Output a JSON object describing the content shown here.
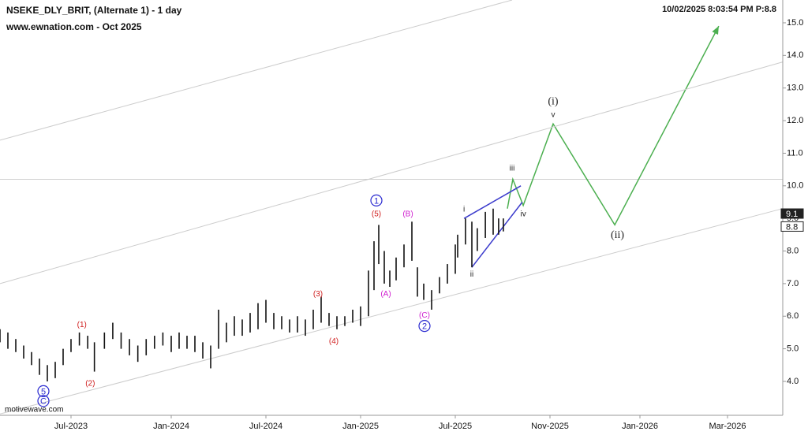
{
  "chart_data": {
    "type": "ohlc",
    "title": "NSEKE_DLY_BRIT, (Alternate 1) - 1 day",
    "subtitle": "www.ewnation.com  - Oct 2025",
    "timestamp": "10/02/2025 8:03:54 PM  P:8.8",
    "watermark": "motivewave.com",
    "xlim": [
      1.5,
      39.26
    ],
    "xticks": [
      {
        "value": 6,
        "label": "Jul-2023"
      },
      {
        "value": 12,
        "label": "Jan-2024"
      },
      {
        "value": 18,
        "label": "Jul-2024"
      },
      {
        "value": 24,
        "label": "Jan-2025"
      },
      {
        "value": 30,
        "label": "Jul-2025"
      },
      {
        "value": 34,
        "label": "Nov-2025"
      },
      {
        "value": 36,
        "label": "Jan-2026"
      },
      {
        "value": 38,
        "label": "Mar-2026"
      }
    ],
    "ylim": [
      2.96,
      15.7
    ],
    "yticks": [
      {
        "value": 4,
        "label": "4.0"
      },
      {
        "value": 5,
        "label": "5.0"
      },
      {
        "value": 6,
        "label": "6.0"
      },
      {
        "value": 7,
        "label": "7.0"
      },
      {
        "value": 8,
        "label": "8.0"
      },
      {
        "value": 9,
        "label": "9.0"
      },
      {
        "value": 10,
        "label": "10.0"
      },
      {
        "value": 11,
        "label": "11.0"
      },
      {
        "value": 12,
        "label": "12.0"
      },
      {
        "value": 13,
        "label": "13.0"
      },
      {
        "value": 14,
        "label": "14.0"
      },
      {
        "value": 15,
        "label": "15.0"
      }
    ],
    "price_labels": [
      9.1,
      8.8
    ],
    "hline": 10.2,
    "bars": {
      "color": "#111111",
      "x": [
        1.5,
        2.0,
        2.5,
        3.0,
        3.5,
        4.0,
        4.5,
        5.0,
        5.5,
        6.0,
        6.5,
        7.0,
        7.4,
        8.0,
        8.5,
        9.0,
        9.5,
        10.0,
        10.5,
        11.0,
        11.5,
        12.0,
        12.5,
        13.0,
        13.5,
        14.0,
        14.5,
        15.0,
        15.5,
        16.0,
        16.5,
        17.0,
        17.5,
        18.0,
        18.5,
        19.0,
        19.5,
        20.0,
        20.5,
        21.0,
        21.5,
        22.0,
        22.5,
        23.0,
        23.5,
        24.0,
        24.5,
        24.85,
        25.15,
        25.5,
        25.85,
        26.25,
        26.75,
        27.25,
        27.6,
        28.0,
        28.5,
        29.0,
        29.5,
        30.0,
        30.1,
        30.43,
        30.7,
        30.93,
        31.27,
        31.6,
        31.83,
        32.03
      ],
      "high": [
        5.6,
        5.5,
        5.3,
        5.1,
        4.9,
        4.7,
        4.5,
        4.6,
        5.0,
        5.3,
        5.5,
        5.4,
        5.2,
        5.5,
        5.8,
        5.5,
        5.3,
        5.1,
        5.3,
        5.4,
        5.5,
        5.4,
        5.5,
        5.4,
        5.4,
        5.2,
        5.1,
        6.2,
        5.8,
        6.0,
        5.9,
        6.1,
        6.4,
        6.5,
        6.1,
        6.0,
        5.9,
        6.0,
        5.9,
        6.2,
        6.6,
        6.1,
        6.0,
        6.0,
        6.2,
        6.3,
        7.4,
        8.3,
        8.8,
        8.0,
        7.4,
        7.8,
        8.2,
        8.9,
        7.5,
        7.0,
        6.8,
        7.2,
        7.6,
        8.2,
        8.5,
        9.0,
        8.9,
        8.7,
        9.2,
        9.3,
        9.0,
        9.0
      ],
      "low": [
        5.2,
        5.0,
        4.9,
        4.7,
        4.5,
        4.2,
        4.0,
        4.1,
        4.5,
        4.9,
        5.1,
        5.0,
        4.3,
        5.0,
        5.3,
        5.0,
        4.8,
        4.6,
        4.8,
        5.0,
        5.1,
        4.9,
        5.0,
        5.0,
        4.9,
        4.7,
        4.4,
        5.0,
        5.2,
        5.4,
        5.4,
        5.5,
        5.6,
        5.8,
        5.6,
        5.6,
        5.5,
        5.5,
        5.4,
        5.6,
        5.8,
        5.7,
        5.6,
        5.7,
        5.8,
        5.7,
        6.0,
        6.8,
        7.6,
        7.0,
        6.9,
        7.1,
        7.5,
        7.7,
        6.6,
        6.5,
        6.2,
        6.7,
        7.0,
        7.3,
        7.8,
        8.2,
        7.5,
        8.0,
        8.4,
        8.5,
        8.5,
        8.6
      ]
    },
    "series": [
      {
        "name": "projection",
        "color": "#4caf50",
        "x": [
          32.2,
          32.43,
          32.87,
          34.07,
          35.44,
          37.8
        ],
        "values": [
          9.3,
          10.2,
          9.4,
          11.9,
          8.8,
          14.9
        ]
      },
      {
        "name": "wedge-top",
        "color": "#3a3acc",
        "x": [
          30.37,
          32.77
        ],
        "values": [
          9.0,
          10.0
        ]
      },
      {
        "name": "wedge-bottom",
        "color": "#3a3acc",
        "x": [
          30.7,
          32.83
        ],
        "values": [
          7.5,
          9.5
        ]
      },
      {
        "name": "channel-1",
        "color": "#cccccc",
        "x": [
          1.5,
          32.4
        ],
        "values": [
          11.4,
          15.7
        ]
      },
      {
        "name": "channel-2",
        "color": "#cccccc",
        "x": [
          1.5,
          39.26
        ],
        "values": [
          7.0,
          13.8
        ]
      },
      {
        "name": "channel-3",
        "color": "#cccccc",
        "x": [
          1.5,
          39.26
        ],
        "values": [
          3.0,
          9.3
        ]
      }
    ],
    "annotations": [
      {
        "text": "5",
        "x": 4.25,
        "y": 3.7,
        "color": "#2a2ad0",
        "circled": true
      },
      {
        "text": "C",
        "x": 4.25,
        "y": 3.4,
        "color": "#2a2ad0",
        "circled": true
      },
      {
        "text": "(1)",
        "x": 6.65,
        "y": 5.75,
        "color": "#d02020"
      },
      {
        "text": "(2)",
        "x": 7.15,
        "y": 3.95,
        "color": "#d02020"
      },
      {
        "text": "(3)",
        "x": 21.3,
        "y": 6.7,
        "color": "#d02020"
      },
      {
        "text": "(4)",
        "x": 22.3,
        "y": 5.25,
        "color": "#d02020"
      },
      {
        "text": "(5)",
        "x": 25.0,
        "y": 9.15,
        "color": "#d02020"
      },
      {
        "text": "1",
        "x": 25.0,
        "y": 9.55,
        "color": "#2a2ad0",
        "circled": true
      },
      {
        "text": "(B)",
        "x": 27.0,
        "y": 9.15,
        "color": "#d020d0"
      },
      {
        "text": "(A)",
        "x": 25.6,
        "y": 6.7,
        "color": "#d020d0"
      },
      {
        "text": "(C)",
        "x": 28.05,
        "y": 6.05,
        "color": "#d020d0"
      },
      {
        "text": "2",
        "x": 28.05,
        "y": 5.7,
        "color": "#2a2ad0",
        "circled": true
      },
      {
        "text": "i",
        "x": 30.37,
        "y": 9.3,
        "color": "#222222"
      },
      {
        "text": "ii",
        "x": 30.7,
        "y": 7.3,
        "color": "#222222"
      },
      {
        "text": "iii",
        "x": 32.4,
        "y": 10.55,
        "color": "#222222"
      },
      {
        "text": "iv",
        "x": 32.87,
        "y": 9.15,
        "color": "#222222"
      },
      {
        "text": "v",
        "x": 34.07,
        "y": 12.2,
        "color": "#222222"
      },
      {
        "text": "(i)",
        "x": 34.07,
        "y": 12.6,
        "color": "#222222",
        "big": true
      },
      {
        "text": "(ii)",
        "x": 35.5,
        "y": 8.5,
        "color": "#222222",
        "big": true
      }
    ]
  }
}
